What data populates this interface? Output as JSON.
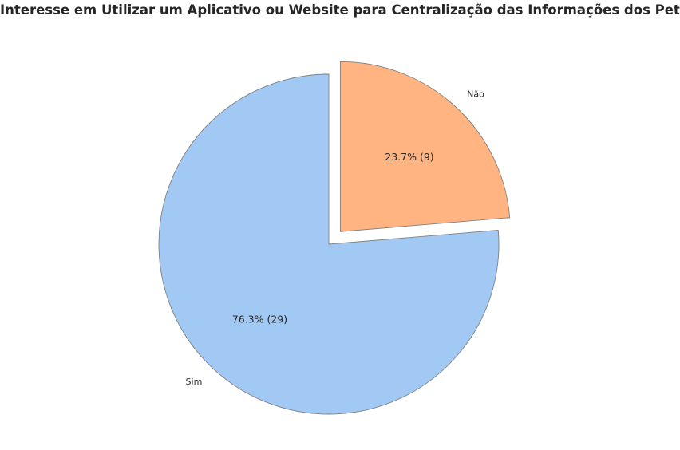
{
  "chart_data": {
    "type": "pie",
    "title": "Interesse em Utilizar um Aplicativo ou Website para Centralização das Informações dos Pets",
    "categories": [
      "Sim",
      "Não"
    ],
    "values": [
      29,
      9
    ],
    "percent_labels": [
      "76.3% (29)",
      "23.7% (9)"
    ],
    "colors": [
      "#a1c9f4",
      "#ffb482"
    ],
    "edge_color": "#808080",
    "exploded": [
      "Não"
    ],
    "start_angle_deg": 90,
    "direction": "counterclockwise"
  }
}
